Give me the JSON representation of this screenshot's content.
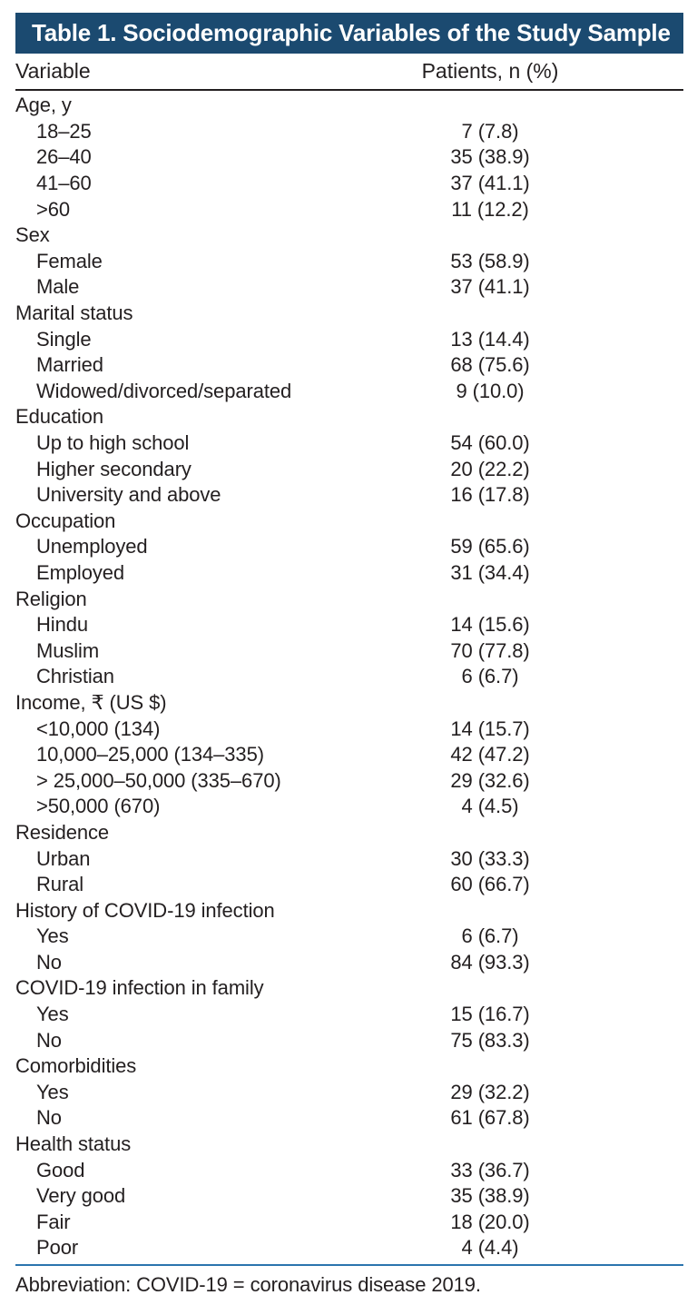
{
  "title_bar": {
    "text": "Table 1. Sociodemographic Variables of the Study Sample"
  },
  "columns": {
    "variable": "Variable",
    "patients": "Patients, n (%)"
  },
  "table": {
    "sections": [
      {
        "header": "Age, y",
        "rows": [
          {
            "label": "18–25",
            "value": "7 (7.8)"
          },
          {
            "label": "26–40",
            "value": "35 (38.9)"
          },
          {
            "label": "41–60",
            "value": "37 (41.1)"
          },
          {
            "label": ">60",
            "value": "11 (12.2)"
          }
        ]
      },
      {
        "header": "Sex",
        "rows": [
          {
            "label": "Female",
            "value": "53 (58.9)"
          },
          {
            "label": "Male",
            "value": "37 (41.1)"
          }
        ]
      },
      {
        "header": "Marital status",
        "rows": [
          {
            "label": "Single",
            "value": "13 (14.4)"
          },
          {
            "label": "Married",
            "value": "68 (75.6)"
          },
          {
            "label": "Widowed/divorced/separated",
            "value": "9 (10.0)"
          }
        ]
      },
      {
        "header": "Education",
        "rows": [
          {
            "label": "Up to high school",
            "value": "54 (60.0)"
          },
          {
            "label": "Higher secondary",
            "value": "20 (22.2)"
          },
          {
            "label": "University and above",
            "value": "16 (17.8)"
          }
        ]
      },
      {
        "header": "Occupation",
        "rows": [
          {
            "label": "Unemployed",
            "value": "59 (65.6)"
          },
          {
            "label": "Employed",
            "value": "31 (34.4)"
          }
        ]
      },
      {
        "header": "Religion",
        "rows": [
          {
            "label": "Hindu",
            "value": "14 (15.6)"
          },
          {
            "label": "Muslim",
            "value": "70 (77.8)"
          },
          {
            "label": "Christian",
            "value": "6 (6.7)"
          }
        ]
      },
      {
        "header": "Income, ₹ (US $)",
        "rows": [
          {
            "label": "<10,000 (134)",
            "value": "14 (15.7)"
          },
          {
            "label": "10,000–25,000 (134–335)",
            "value": "42 (47.2)"
          },
          {
            "label": "> 25,000–50,000 (335–670)",
            "value": "29 (32.6)"
          },
          {
            "label": ">50,000 (670)",
            "value": "4 (4.5)"
          }
        ]
      },
      {
        "header": "Residence",
        "rows": [
          {
            "label": "Urban",
            "value": "30 (33.3)"
          },
          {
            "label": "Rural",
            "value": "60 (66.7)"
          }
        ]
      },
      {
        "header": "History of COVID-19 infection",
        "rows": [
          {
            "label": "Yes",
            "value": "6 (6.7)"
          },
          {
            "label": "No",
            "value": "84 (93.3)"
          }
        ]
      },
      {
        "header": "COVID-19 infection in family",
        "rows": [
          {
            "label": "Yes",
            "value": "15 (16.7)"
          },
          {
            "label": "No",
            "value": "75 (83.3)"
          }
        ]
      },
      {
        "header": "Comorbidities",
        "rows": [
          {
            "label": "Yes",
            "value": "29 (32.2)"
          },
          {
            "label": "No",
            "value": "61 (67.8)"
          }
        ]
      },
      {
        "header": "Health status",
        "rows": [
          {
            "label": "Good",
            "value": "33 (36.7)"
          },
          {
            "label": "Very good",
            "value": "35 (38.9)"
          },
          {
            "label": "Fair",
            "value": "18 (20.0)"
          },
          {
            "label": "Poor",
            "value": "4 (4.4)"
          }
        ]
      }
    ]
  },
  "footer": {
    "abbreviation": "Abbreviation: COVID-19 = coronavirus disease 2019."
  },
  "colors": {
    "bar_bg": "#1b4a70",
    "bar_text": "#ffffff",
    "text": "#231f20",
    "rule_black": "#231f20",
    "rule_blue": "#2b74ae"
  }
}
